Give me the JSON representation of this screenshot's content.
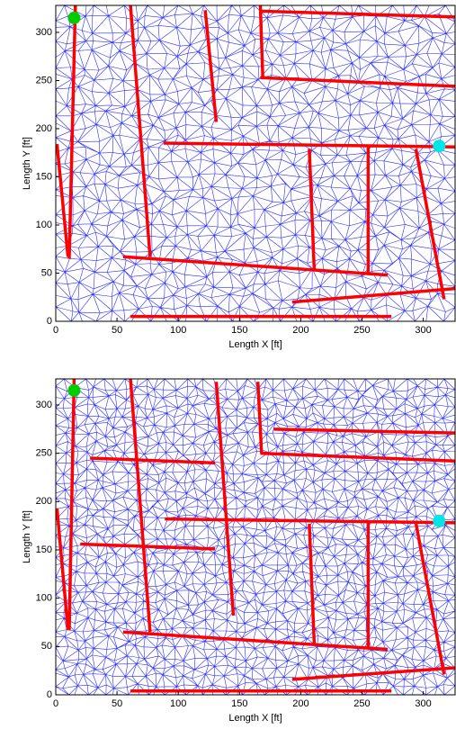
{
  "chart_data": [
    {
      "type": "line",
      "xlabel": "Length X [ft]",
      "ylabel": "Length Y [ft]",
      "xlim": [
        0,
        326
      ],
      "ylim": [
        0,
        328
      ],
      "xticks": [
        0,
        50,
        100,
        150,
        200,
        250,
        300
      ],
      "yticks": [
        0,
        50,
        100,
        150,
        200,
        250,
        300
      ],
      "series": [
        {
          "color": "#ff0000",
          "marker": false,
          "x": [
            16,
            11,
            null,
            61,
            77,
            null,
            55,
            271,
            null,
            88,
            326,
            null,
            167,
            326,
            null,
            167,
            169,
            null,
            167,
            326,
            null,
            255,
            255,
            null,
            294,
            317,
            null,
            61,
            274,
            null,
            122,
            131,
            null,
            193,
            326,
            null,
            207,
            211,
            null,
            1,
            10
          ],
          "y": [
            328,
            65,
            null,
            328,
            67,
            null,
            67,
            48,
            null,
            185,
            181,
            null,
            253,
            244,
            null,
            328,
            253,
            null,
            322,
            316,
            null,
            181,
            51,
            null,
            179,
            23,
            null,
            5,
            5,
            null,
            323,
            207,
            null,
            20,
            34,
            null,
            179,
            53,
            null,
            184,
            67
          ]
        },
        {
          "color": "#00cc00",
          "marker": true,
          "x": [
            15
          ],
          "y": [
            315
          ]
        },
        {
          "color": "#00e5e5",
          "marker": true,
          "x": [
            313
          ],
          "y": [
            182
          ]
        }
      ]
    },
    {
      "type": "line",
      "xlabel": "Length X [ft]",
      "ylabel": "Length Y [ft]",
      "xlim": [
        0,
        326
      ],
      "ylim": [
        0,
        327
      ],
      "xticks": [
        0,
        50,
        100,
        150,
        200,
        250,
        300
      ],
      "yticks": [
        0,
        50,
        100,
        150,
        200,
        250,
        300
      ],
      "series": [
        {
          "color": "#ff0000",
          "marker": false,
          "x": [
            15,
            11,
            null,
            61,
            77,
            null,
            55,
            271,
            null,
            89,
            326,
            null,
            167,
            326,
            null,
            165,
            168,
            null,
            178,
            326,
            null,
            255,
            255,
            null,
            294,
            317,
            null,
            61,
            274,
            null,
            193,
            326,
            null,
            207,
            211,
            null,
            1,
            10,
            null,
            28,
            130,
            null,
            20,
            130,
            null,
            131,
            145
          ],
          "y": [
            327,
            67,
            null,
            327,
            65,
            null,
            65,
            47,
            null,
            182,
            178,
            null,
            250,
            242,
            null,
            324,
            250,
            null,
            275,
            271,
            null,
            180,
            49,
            null,
            178,
            21,
            null,
            4,
            4,
            null,
            16,
            28,
            null,
            177,
            53,
            null,
            193,
            67,
            null,
            245,
            240,
            null,
            156,
            151,
            null,
            324,
            82
          ]
        },
        {
          "color": "#00cc00",
          "marker": true,
          "x": [
            15
          ],
          "y": [
            315
          ]
        },
        {
          "color": "#00e5e5",
          "marker": true,
          "x": [
            313
          ],
          "y": [
            180
          ]
        }
      ]
    }
  ]
}
